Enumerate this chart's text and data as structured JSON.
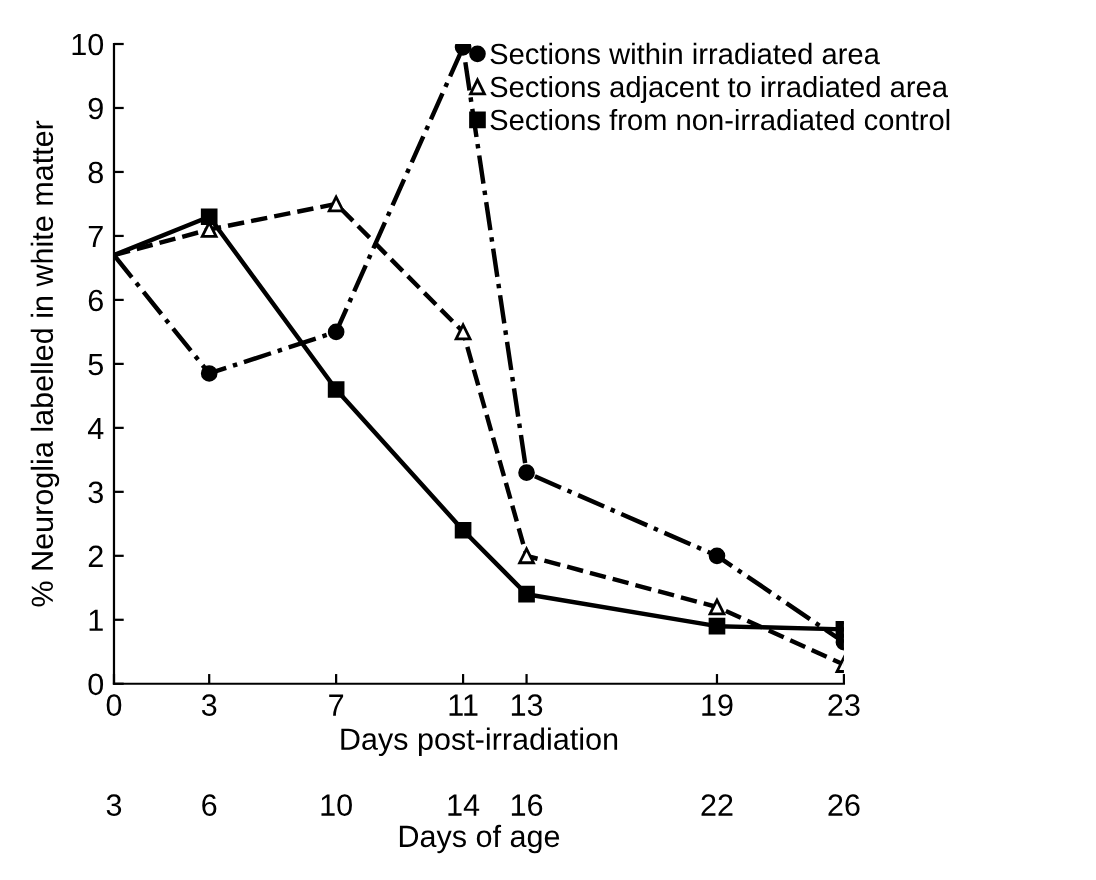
{
  "chart_data": {
    "type": "line",
    "ylabel": "% Neuroglia labelled in white matter",
    "xlabel": "Days post-irradiation",
    "x2label": "Days of age",
    "x": [
      0,
      3,
      7,
      11,
      13,
      19,
      23
    ],
    "series": [
      {
        "name": "Sections within irradiated area",
        "color": "#000000",
        "marker": "circle",
        "line_style": "dashdot",
        "values": [
          6.7,
          4.85,
          5.5,
          9.95,
          3.3,
          2.0,
          0.65
        ]
      },
      {
        "name": "Sections adjacent to irradiated area",
        "color": "#000000",
        "marker": "triangle",
        "line_style": "dashed",
        "values": [
          6.7,
          7.1,
          7.5,
          5.5,
          2.0,
          1.2,
          0.3
        ]
      },
      {
        "name": "Sections from non-irradiated control",
        "color": "#000000",
        "marker": "square",
        "line_style": "solid",
        "values": [
          6.7,
          7.3,
          4.6,
          2.4,
          1.4,
          0.9,
          0.85
        ]
      }
    ],
    "xlim": [
      0,
      23
    ],
    "xticks": [
      0,
      3,
      7,
      11,
      13,
      19,
      23
    ],
    "x2lim": [
      3,
      26
    ],
    "x2ticks": [
      3,
      6,
      10,
      14,
      16,
      22,
      26
    ],
    "ylim": [
      0,
      10
    ],
    "yticks": [
      0,
      1,
      2,
      3,
      4,
      5,
      6,
      7,
      8,
      9,
      10
    ],
    "grid": false,
    "legend": "top right"
  }
}
